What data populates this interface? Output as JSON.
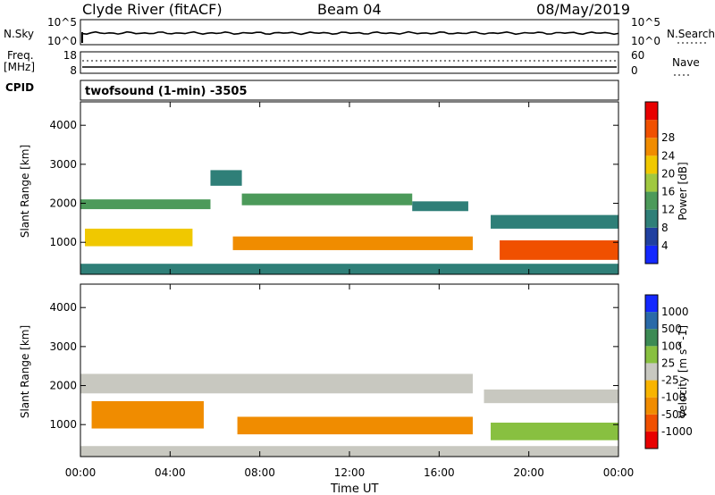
{
  "header": {
    "station": "Clyde River (fitACF)",
    "beam": "Beam 04",
    "date": "08/May/2019"
  },
  "nsky_panel": {
    "left_label": "N.Sky",
    "right_label": "N.Search",
    "tick_top": "10^5",
    "tick_bottom": "10^0",
    "legend_line": "dotted"
  },
  "freq_panel": {
    "left_label_1": "Freq.",
    "left_label_2": "[MHz]",
    "left_ticks": [
      "18",
      "8"
    ],
    "right_ticks": [
      "60",
      "0"
    ],
    "right_label": "Nave",
    "legend_line": "dotted"
  },
  "cpid_panel": {
    "label": "CPID",
    "text": "twofsound (1-min) -3505"
  },
  "x_axis": {
    "title": "Time UT",
    "ticks": [
      "00:00",
      "04:00",
      "08:00",
      "12:00",
      "16:00",
      "20:00",
      "00:00"
    ],
    "range_hours": [
      0,
      24
    ]
  },
  "colors": {
    "power": [
      "#1428ff",
      "#2040a0",
      "#2f7f78",
      "#4c9a5a",
      "#a0c840",
      "#f0c800",
      "#f08c00",
      "#f05000",
      "#e80000"
    ],
    "velocity": [
      "#e80000",
      "#f05000",
      "#f08c00",
      "#f8b400",
      "#c8c8c0",
      "#88c040",
      "#3c8a54",
      "#2a6aa8",
      "#1428ff"
    ]
  },
  "chart_data": [
    {
      "type": "heatmap",
      "name": "power",
      "ylabel": "Slant Range [km]",
      "yticks": [
        "1000",
        "2000",
        "3000",
        "4000"
      ],
      "ylim": [
        180,
        4600
      ],
      "colorbar_label": "Power [dB]",
      "colorbar_ticks": [
        "4",
        "8",
        "12",
        "16",
        "20",
        "24",
        "28"
      ],
      "colorbar_range": [
        0,
        32
      ],
      "bands": [
        {
          "t": [
            0.0,
            5.8
          ],
          "r": [
            1850,
            2100
          ],
          "v": 12
        },
        {
          "t": [
            5.8,
            7.2
          ],
          "r": [
            2450,
            2850
          ],
          "v": 10
        },
        {
          "t": [
            7.2,
            14.8
          ],
          "r": [
            1950,
            2250
          ],
          "v": 12
        },
        {
          "t": [
            14.8,
            17.3
          ],
          "r": [
            1800,
            2050
          ],
          "v": 10
        },
        {
          "t": [
            0.2,
            5.0
          ],
          "r": [
            900,
            1350
          ],
          "v": 20
        },
        {
          "t": [
            6.8,
            17.5
          ],
          "r": [
            800,
            1150
          ],
          "v": 24
        },
        {
          "t": [
            18.3,
            24.0
          ],
          "r": [
            1350,
            1700
          ],
          "v": 10
        },
        {
          "t": [
            18.7,
            24.0
          ],
          "r": [
            550,
            1050
          ],
          "v": 28
        },
        {
          "t": [
            0.0,
            24.0
          ],
          "r": [
            180,
            450
          ],
          "v": 8
        }
      ]
    },
    {
      "type": "heatmap",
      "name": "velocity",
      "ylabel": "Slant Range [km]",
      "yticks": [
        "1000",
        "2000",
        "3000",
        "4000"
      ],
      "ylim": [
        180,
        4600
      ],
      "colorbar_label": "Velocity [m s^-1]",
      "colorbar_ticks": [
        "1000",
        "500",
        "100",
        "25",
        "-25",
        "-100",
        "-500",
        "-1000"
      ],
      "bands": [
        {
          "t": [
            0.0,
            17.5
          ],
          "r": [
            1800,
            2300
          ],
          "v": 0
        },
        {
          "t": [
            18.0,
            24.0
          ],
          "r": [
            1550,
            1900
          ],
          "v": 0
        },
        {
          "t": [
            0.5,
            5.5
          ],
          "r": [
            900,
            1600
          ],
          "v": -100
        },
        {
          "t": [
            7.0,
            17.5
          ],
          "r": [
            750,
            1200
          ],
          "v": -300
        },
        {
          "t": [
            18.3,
            24.0
          ],
          "r": [
            600,
            1050
          ],
          "v": 100
        },
        {
          "t": [
            0.0,
            24.0
          ],
          "r": [
            180,
            450
          ],
          "v": 0
        }
      ]
    }
  ]
}
